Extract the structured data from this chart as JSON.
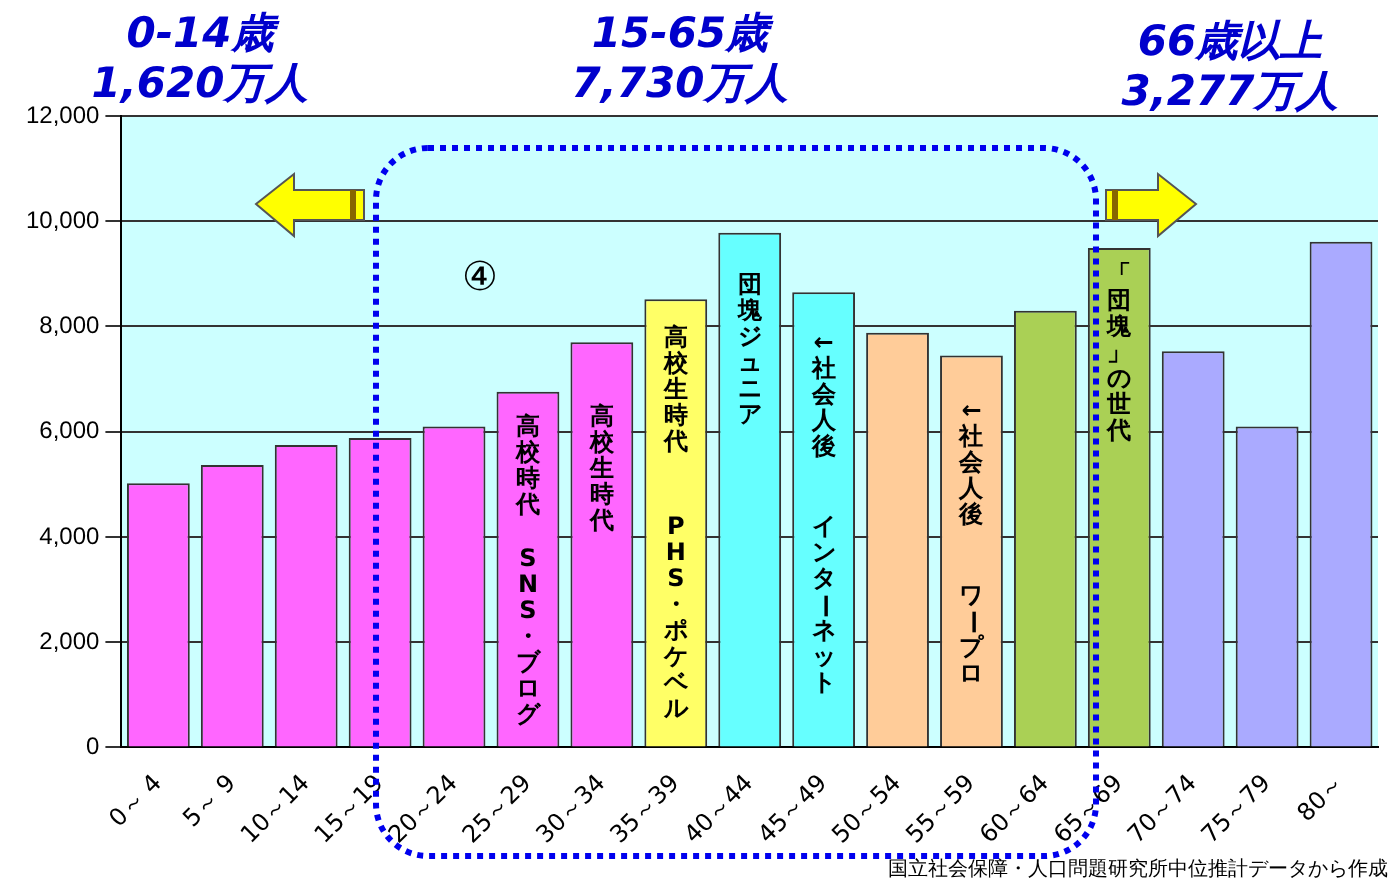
{
  "chart_data": {
    "type": "bar",
    "categories": [
      "0～ 4",
      "5～ 9",
      "10～14",
      "15～19",
      "20～24",
      "25～29",
      "30～34",
      "35～39",
      "40～44",
      "45～49",
      "50～54",
      "55～59",
      "60～64",
      "65～69",
      "70～74",
      "75～79",
      "80～"
    ],
    "values": [
      5020,
      5370,
      5750,
      5880,
      6100,
      6760,
      7700,
      8520,
      9780,
      8650,
      7880,
      7450,
      8300,
      9490,
      7530,
      6100,
      9610
    ],
    "colors": [
      "#ff66ff",
      "#ff66ff",
      "#ff66ff",
      "#ff66ff",
      "#ff66ff",
      "#ff66ff",
      "#ff66ff",
      "#ffff66",
      "#66ffff",
      "#66ffff",
      "#ffcc99",
      "#ffcc99",
      "#aad055",
      "#aad055",
      "#aaaaff",
      "#aaaaff",
      "#aaaaff"
    ],
    "ylim": [
      0,
      12000
    ],
    "yticks": [
      0,
      {
        "value": 2000,
        "label": "2,000"
      },
      {
        "value": 4000,
        "label": "4,000"
      },
      {
        "value": 6000,
        "label": "6,000"
      },
      {
        "value": 8000,
        "label": "8,000"
      },
      {
        "value": 10000,
        "label": "10,000"
      },
      {
        "value": 12000,
        "label": "12,000"
      }
    ],
    "grid": "y",
    "legend": false,
    "annotations": [
      "0-14歳",
      "1,620万人",
      "15-65歳",
      "7,730万人",
      "66歳以上",
      "3,277万人",
      "④",
      "国立社会保障・人口問題研究所中位推計データから作成",
      {
        "text": "高校時代",
        "x": "25～29",
        "y": 6300
      },
      {
        "text": "SNS・ブログ",
        "x": "25～29",
        "y": 3800
      },
      {
        "text": "高校生時代",
        "x": "30～34",
        "y": 6500
      },
      {
        "text": "高校生時代",
        "x": "35～39",
        "y": 8000
      },
      {
        "text": "PHS・ポケベル",
        "x": "35～39",
        "y": 4400
      },
      {
        "text": "団塊ジュニア",
        "x": "40～44",
        "y": 9000
      },
      {
        "text": "←社会人後",
        "x": "45～49",
        "y": 7900
      },
      {
        "text": "インターネット",
        "x": "45～49",
        "y": 4400
      },
      {
        "text": "←社会人後",
        "x": "55～59",
        "y": 6600
      },
      {
        "text": "ワープロ",
        "x": "55～59",
        "y": 3100
      },
      {
        "text": "「団塊」の世代",
        "x": "65～69",
        "y": 9200
      }
    ]
  }
}
